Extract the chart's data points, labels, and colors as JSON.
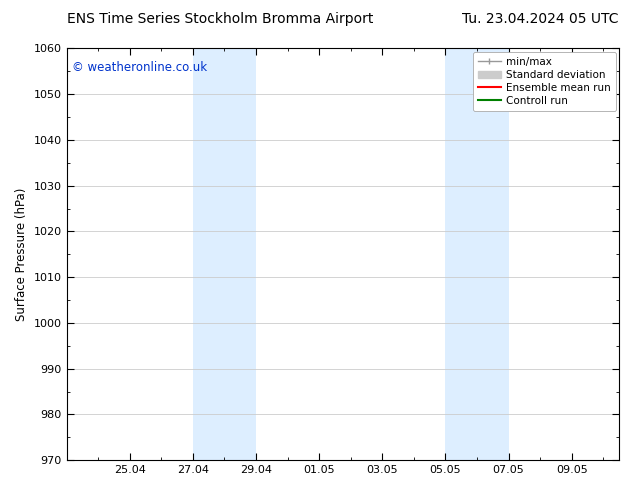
{
  "title_left": "ENS Time Series Stockholm Bromma Airport",
  "title_right": "Tu. 23.04.2024 05 UTC",
  "ylabel": "Surface Pressure (hPa)",
  "ylim": [
    970,
    1060
  ],
  "yticks": [
    970,
    980,
    990,
    1000,
    1010,
    1020,
    1030,
    1040,
    1050,
    1060
  ],
  "xtick_labels": [
    "25.04",
    "27.04",
    "29.04",
    "01.05",
    "03.05",
    "05.05",
    "07.05",
    "09.05"
  ],
  "xtick_positions": [
    2,
    4,
    6,
    8,
    10,
    12,
    14,
    16
  ],
  "xlim": [
    0,
    17.5
  ],
  "shaded_regions": [
    {
      "x_start": 4,
      "x_end": 6,
      "color": "#ddeeff"
    },
    {
      "x_start": 12,
      "x_end": 14,
      "color": "#ddeeff"
    }
  ],
  "watermark_text": "© weatheronline.co.uk",
  "watermark_color": "#0033cc",
  "background_color": "#ffffff",
  "plot_bg_color": "#ffffff",
  "legend_items": [
    {
      "label": "min/max",
      "color": "#999999",
      "lw": 1
    },
    {
      "label": "Standard deviation",
      "color": "#cccccc",
      "lw": 5
    },
    {
      "label": "Ensemble mean run",
      "color": "#ff0000",
      "lw": 1.5
    },
    {
      "label": "Controll run",
      "color": "#008000",
      "lw": 1.5
    }
  ],
  "font_size_title": 10,
  "font_size_axis": 8.5,
  "font_size_tick": 8,
  "font_size_legend": 7.5,
  "font_size_watermark": 8.5,
  "grid_color": "#cccccc",
  "grid_style": "-",
  "grid_lw": 0.6
}
